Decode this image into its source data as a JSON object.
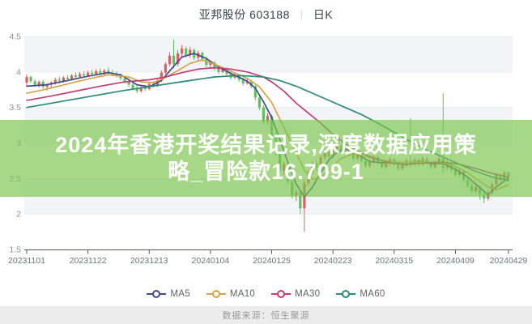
{
  "header": {
    "title": "亚邦股份 603188",
    "period_label": "日K"
  },
  "overlay": {
    "line1": "2024年香港开奖结果记录,深度数据应用策",
    "line2": "略_冒险款16.709-1",
    "bg_color": "rgba(125,198,80,0.68)",
    "text_color": "#ffffff"
  },
  "footer": {
    "source_label": "数据来源：恒生聚源"
  },
  "chart_data": {
    "type": "candlestick",
    "title": "亚邦股份 603188 日K",
    "ylim": [
      1.5,
      4.5
    ],
    "y_tick_labels": [
      "4.5",
      "4",
      "3.5",
      "3",
      "2.5",
      "2",
      "1.5"
    ],
    "y_tick_values": [
      4.5,
      4.0,
      3.5,
      3.0,
      2.5,
      2.0,
      1.5
    ],
    "x_tick_labels": [
      "20231101",
      "20231122",
      "20231213",
      "20240104",
      "20240125",
      "20240223",
      "20240315",
      "20240409",
      "20240429"
    ],
    "x_tick_days": [
      0,
      15,
      30,
      45,
      60,
      75,
      90,
      105,
      118
    ],
    "up_color": "#de5f5f",
    "down_color": "#5fc063",
    "stripe_color": "#f2f4f7",
    "grid_line_color": "#e9ecf1",
    "axis_color": "#55585e",
    "y_label_color": "#8b919c",
    "x_label_color": "#6e737d",
    "candles_ohlc": [
      [
        3.85,
        3.97,
        3.8,
        3.93
      ],
      [
        3.93,
        3.95,
        3.84,
        3.87
      ],
      [
        3.87,
        3.9,
        3.79,
        3.82
      ],
      [
        3.82,
        3.88,
        3.78,
        3.86
      ],
      [
        3.86,
        3.89,
        3.76,
        3.79
      ],
      [
        3.79,
        3.84,
        3.74,
        3.82
      ],
      [
        3.82,
        3.87,
        3.78,
        3.85
      ],
      [
        3.85,
        3.92,
        3.82,
        3.89
      ],
      [
        3.89,
        3.93,
        3.84,
        3.87
      ],
      [
        3.87,
        3.94,
        3.85,
        3.92
      ],
      [
        3.92,
        3.96,
        3.87,
        3.9
      ],
      [
        3.9,
        3.97,
        3.88,
        3.95
      ],
      [
        3.95,
        3.99,
        3.9,
        3.93
      ],
      [
        3.93,
        4.0,
        3.91,
        3.97
      ],
      [
        3.97,
        4.01,
        3.92,
        3.95
      ],
      [
        3.95,
        4.02,
        3.93,
        3.99
      ],
      [
        3.99,
        4.03,
        3.94,
        3.97
      ],
      [
        3.97,
        4.04,
        3.95,
        4.01
      ],
      [
        4.01,
        4.05,
        3.96,
        3.98
      ],
      [
        3.98,
        4.04,
        3.95,
        4.02
      ],
      [
        4.02,
        4.06,
        3.97,
        3.99
      ],
      [
        3.99,
        4.03,
        3.94,
        3.97
      ],
      [
        3.97,
        4.01,
        3.92,
        3.95
      ],
      [
        3.95,
        3.98,
        3.88,
        3.91
      ],
      [
        3.91,
        3.94,
        3.84,
        3.87
      ],
      [
        3.87,
        3.9,
        3.79,
        3.82
      ],
      [
        3.82,
        3.86,
        3.74,
        3.77
      ],
      [
        3.77,
        3.81,
        3.7,
        3.73
      ],
      [
        3.73,
        3.8,
        3.71,
        3.78
      ],
      [
        3.78,
        3.82,
        3.73,
        3.76
      ],
      [
        3.76,
        3.85,
        3.74,
        3.83
      ],
      [
        3.83,
        3.87,
        3.78,
        3.81
      ],
      [
        3.81,
        3.9,
        3.79,
        3.88
      ],
      [
        3.88,
        4.02,
        3.86,
        3.99
      ],
      [
        3.99,
        4.14,
        3.97,
        4.11
      ],
      [
        4.11,
        4.28,
        4.08,
        4.23
      ],
      [
        4.23,
        4.45,
        4.05,
        4.11
      ],
      [
        4.11,
        4.31,
        4.08,
        4.26
      ],
      [
        4.26,
        4.38,
        4.2,
        4.33
      ],
      [
        4.33,
        4.36,
        4.21,
        4.24
      ],
      [
        4.24,
        4.35,
        4.2,
        4.31
      ],
      [
        4.31,
        4.33,
        4.17,
        4.2
      ],
      [
        4.2,
        4.3,
        4.16,
        4.27
      ],
      [
        4.27,
        4.29,
        4.15,
        4.18
      ],
      [
        4.18,
        4.22,
        4.07,
        4.1
      ],
      [
        4.1,
        4.16,
        4.06,
        4.13
      ],
      [
        4.13,
        4.15,
        4.02,
        4.05
      ],
      [
        4.05,
        4.09,
        3.97,
        4.0
      ],
      [
        4.0,
        4.07,
        3.98,
        4.04
      ],
      [
        4.04,
        4.06,
        3.94,
        3.97
      ],
      [
        3.97,
        4.0,
        3.89,
        3.92
      ],
      [
        3.92,
        3.98,
        3.9,
        3.95
      ],
      [
        3.95,
        3.97,
        3.86,
        3.89
      ],
      [
        3.89,
        3.92,
        3.81,
        3.84
      ],
      [
        3.84,
        3.9,
        3.82,
        3.87
      ],
      [
        3.87,
        3.89,
        3.77,
        3.8
      ],
      [
        3.8,
        3.82,
        3.6,
        3.64
      ],
      [
        3.64,
        3.68,
        3.46,
        3.5
      ],
      [
        3.5,
        3.53,
        3.27,
        3.3
      ],
      [
        3.3,
        3.42,
        3.26,
        3.38
      ],
      [
        3.38,
        3.4,
        3.07,
        3.1
      ],
      [
        3.1,
        3.14,
        2.82,
        2.86
      ],
      [
        2.86,
        2.9,
        2.57,
        2.61
      ],
      [
        2.61,
        2.74,
        2.55,
        2.7
      ],
      [
        2.7,
        2.72,
        2.42,
        2.46
      ],
      [
        2.46,
        2.5,
        2.22,
        2.26
      ],
      [
        2.26,
        2.34,
        2.18,
        2.31
      ],
      [
        2.31,
        2.33,
        2.0,
        2.08
      ],
      [
        2.08,
        2.48,
        1.75,
        2.44
      ],
      [
        2.44,
        2.62,
        2.4,
        2.59
      ],
      [
        2.59,
        2.74,
        2.55,
        2.71
      ],
      [
        2.71,
        2.75,
        2.6,
        2.65
      ],
      [
        2.65,
        2.83,
        2.62,
        2.8
      ],
      [
        2.8,
        2.91,
        2.76,
        2.88
      ],
      [
        2.88,
        2.9,
        2.78,
        2.81
      ],
      [
        2.81,
        2.93,
        2.78,
        2.9
      ],
      [
        2.9,
        2.99,
        2.86,
        2.96
      ],
      [
        2.96,
        2.98,
        2.85,
        2.88
      ],
      [
        2.88,
        2.97,
        2.85,
        2.94
      ],
      [
        2.94,
        2.96,
        2.83,
        2.86
      ],
      [
        2.86,
        2.89,
        2.75,
        2.78
      ],
      [
        2.78,
        2.86,
        2.75,
        2.83
      ],
      [
        2.83,
        2.85,
        2.72,
        2.75
      ],
      [
        2.75,
        2.78,
        2.65,
        2.68
      ],
      [
        2.68,
        2.77,
        2.65,
        2.74
      ],
      [
        2.74,
        2.83,
        2.71,
        2.8
      ],
      [
        2.8,
        2.82,
        2.7,
        2.73
      ],
      [
        2.73,
        2.76,
        2.63,
        2.66
      ],
      [
        2.66,
        2.74,
        2.63,
        2.71
      ],
      [
        2.71,
        2.8,
        2.68,
        2.77
      ],
      [
        2.77,
        2.79,
        2.67,
        2.7
      ],
      [
        2.7,
        2.73,
        2.61,
        2.64
      ],
      [
        2.64,
        2.72,
        2.61,
        2.69
      ],
      [
        2.69,
        2.78,
        2.66,
        2.75
      ],
      [
        2.75,
        3.35,
        2.66,
        2.7
      ],
      [
        2.7,
        2.79,
        2.67,
        2.76
      ],
      [
        2.76,
        2.78,
        2.67,
        2.7
      ],
      [
        2.7,
        2.81,
        2.68,
        2.78
      ],
      [
        2.78,
        2.8,
        2.69,
        2.72
      ],
      [
        2.72,
        2.74,
        2.63,
        2.66
      ],
      [
        2.66,
        2.75,
        2.63,
        2.72
      ],
      [
        2.72,
        2.81,
        2.69,
        2.78
      ],
      [
        2.78,
        3.7,
        2.58,
        2.65
      ],
      [
        2.65,
        2.76,
        2.62,
        2.72
      ],
      [
        2.72,
        2.74,
        2.59,
        2.62
      ],
      [
        2.62,
        2.66,
        2.52,
        2.55
      ],
      [
        2.55,
        2.64,
        2.52,
        2.6
      ],
      [
        2.6,
        2.62,
        2.45,
        2.48
      ],
      [
        2.48,
        2.52,
        2.37,
        2.4
      ],
      [
        2.4,
        2.44,
        2.29,
        2.32
      ],
      [
        2.32,
        2.41,
        2.29,
        2.38
      ],
      [
        2.38,
        2.4,
        2.2,
        2.28
      ],
      [
        2.28,
        2.31,
        2.15,
        2.22
      ],
      [
        2.22,
        2.34,
        2.19,
        2.3
      ],
      [
        2.3,
        2.45,
        2.27,
        2.42
      ],
      [
        2.42,
        2.58,
        2.39,
        2.55
      ],
      [
        2.55,
        2.57,
        2.45,
        2.48
      ],
      [
        2.48,
        2.61,
        2.46,
        2.58
      ],
      [
        2.58,
        2.6,
        2.47,
        2.52
      ]
    ],
    "ma_series": [
      {
        "name": "MA5",
        "color": "#424a8e",
        "points": [
          [
            0,
            3.8
          ],
          [
            5,
            3.82
          ],
          [
            10,
            3.88
          ],
          [
            15,
            3.94
          ],
          [
            20,
            3.99
          ],
          [
            23,
            3.96
          ],
          [
            27,
            3.82
          ],
          [
            30,
            3.79
          ],
          [
            33,
            3.88
          ],
          [
            36,
            4.08
          ],
          [
            38,
            4.21
          ],
          [
            41,
            4.26
          ],
          [
            44,
            4.19
          ],
          [
            47,
            4.07
          ],
          [
            50,
            3.98
          ],
          [
            54,
            3.87
          ],
          [
            56,
            3.77
          ],
          [
            58,
            3.58
          ],
          [
            60,
            3.36
          ],
          [
            62,
            3.05
          ],
          [
            64,
            2.72
          ],
          [
            66,
            2.42
          ],
          [
            68,
            2.24
          ],
          [
            70,
            2.38
          ],
          [
            72,
            2.58
          ],
          [
            74,
            2.76
          ],
          [
            76,
            2.87
          ],
          [
            78,
            2.92
          ],
          [
            81,
            2.84
          ],
          [
            84,
            2.74
          ],
          [
            87,
            2.72
          ],
          [
            90,
            2.72
          ],
          [
            93,
            2.69
          ],
          [
            96,
            2.74
          ],
          [
            99,
            2.71
          ],
          [
            102,
            2.71
          ],
          [
            105,
            2.63
          ],
          [
            108,
            2.52
          ],
          [
            111,
            2.37
          ],
          [
            113,
            2.27
          ],
          [
            115,
            2.38
          ],
          [
            118,
            2.51
          ]
        ]
      },
      {
        "name": "MA10",
        "color": "#d6a24a",
        "points": [
          [
            0,
            3.7
          ],
          [
            5,
            3.76
          ],
          [
            10,
            3.83
          ],
          [
            15,
            3.9
          ],
          [
            20,
            3.96
          ],
          [
            25,
            3.93
          ],
          [
            28,
            3.86
          ],
          [
            31,
            3.85
          ],
          [
            34,
            3.92
          ],
          [
            37,
            4.02
          ],
          [
            40,
            4.12
          ],
          [
            43,
            4.17
          ],
          [
            46,
            4.11
          ],
          [
            50,
            4.01
          ],
          [
            54,
            3.91
          ],
          [
            57,
            3.79
          ],
          [
            60,
            3.57
          ],
          [
            63,
            3.22
          ],
          [
            66,
            2.86
          ],
          [
            68,
            2.62
          ],
          [
            70,
            2.49
          ],
          [
            72,
            2.51
          ],
          [
            74,
            2.62
          ],
          [
            77,
            2.78
          ],
          [
            80,
            2.85
          ],
          [
            83,
            2.81
          ],
          [
            86,
            2.77
          ],
          [
            90,
            2.73
          ],
          [
            94,
            2.73
          ],
          [
            98,
            2.73
          ],
          [
            102,
            2.72
          ],
          [
            105,
            2.67
          ],
          [
            108,
            2.58
          ],
          [
            111,
            2.46
          ],
          [
            113,
            2.38
          ],
          [
            115,
            2.34
          ],
          [
            118,
            2.41
          ]
        ]
      },
      {
        "name": "MA30",
        "color": "#c03e74",
        "points": [
          [
            0,
            3.6
          ],
          [
            6,
            3.66
          ],
          [
            12,
            3.73
          ],
          [
            18,
            3.8
          ],
          [
            24,
            3.86
          ],
          [
            30,
            3.89
          ],
          [
            34,
            3.93
          ],
          [
            38,
            3.99
          ],
          [
            42,
            4.04
          ],
          [
            46,
            4.06
          ],
          [
            50,
            4.04
          ],
          [
            54,
            4.0
          ],
          [
            58,
            3.93
          ],
          [
            60,
            3.86
          ],
          [
            63,
            3.73
          ],
          [
            66,
            3.56
          ],
          [
            69,
            3.42
          ],
          [
            72,
            3.28
          ],
          [
            75,
            3.12
          ],
          [
            78,
            2.99
          ],
          [
            81,
            2.89
          ],
          [
            84,
            2.81
          ],
          [
            87,
            2.75
          ],
          [
            90,
            2.71
          ],
          [
            94,
            2.7
          ],
          [
            98,
            2.72
          ],
          [
            102,
            2.73
          ],
          [
            106,
            2.7
          ],
          [
            110,
            2.64
          ],
          [
            114,
            2.57
          ],
          [
            118,
            2.52
          ]
        ]
      },
      {
        "name": "MA60",
        "color": "#2b8a79",
        "points": [
          [
            0,
            3.5
          ],
          [
            8,
            3.58
          ],
          [
            16,
            3.66
          ],
          [
            24,
            3.74
          ],
          [
            32,
            3.81
          ],
          [
            40,
            3.88
          ],
          [
            46,
            3.93
          ],
          [
            52,
            3.95
          ],
          [
            58,
            3.93
          ],
          [
            62,
            3.88
          ],
          [
            66,
            3.8
          ],
          [
            70,
            3.7
          ],
          [
            74,
            3.6
          ],
          [
            78,
            3.5
          ],
          [
            82,
            3.4
          ],
          [
            86,
            3.28
          ],
          [
            90,
            3.15
          ],
          [
            94,
            3.02
          ],
          [
            98,
            2.9
          ],
          [
            102,
            2.8
          ],
          [
            106,
            2.7
          ],
          [
            110,
            2.6
          ],
          [
            114,
            2.52
          ],
          [
            118,
            2.47
          ]
        ]
      }
    ],
    "legend": [
      {
        "label": "MA5",
        "color": "#424a8e"
      },
      {
        "label": "MA10",
        "color": "#d6a24a"
      },
      {
        "label": "MA30",
        "color": "#c03e74"
      },
      {
        "label": "MA60",
        "color": "#2b8a79"
      }
    ]
  }
}
